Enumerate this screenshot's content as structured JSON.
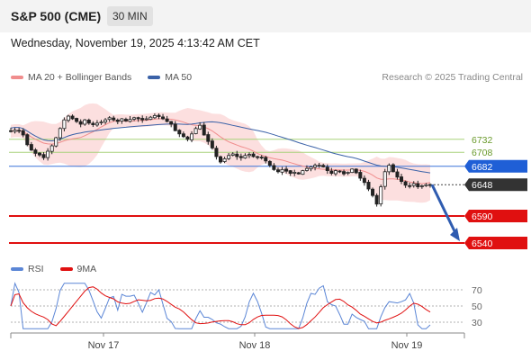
{
  "header": {
    "title": "S&P 500 (CME)",
    "timeframe": "30 MIN",
    "datetime": "Wednesday, November 19, 2025 4:13:42 AM CET",
    "copyright": "Research © 2025 Trading Central"
  },
  "legend_main": [
    {
      "label": "MA 20 + Bollinger Bands",
      "color": "#f08d8d"
    },
    {
      "label": "MA 50",
      "color": "#3b62a8"
    }
  ],
  "legend_rsi": [
    {
      "label": "RSI",
      "color": "#5b86d6"
    },
    {
      "label": "9MA",
      "color": "#e01010"
    }
  ],
  "chart_data": [
    {
      "type": "candlestick",
      "ylim": [
        6510,
        6810
      ],
      "x_tick_labels": [
        "Nov 17",
        "Nov 18",
        "Nov 19"
      ],
      "close": [
        6747,
        6749,
        6748,
        6740,
        6722,
        6712,
        6706,
        6703,
        6698,
        6710,
        6720,
        6735,
        6752,
        6768,
        6775,
        6770,
        6765,
        6760,
        6768,
        6762,
        6759,
        6762,
        6764,
        6768,
        6772,
        6768,
        6765,
        6770,
        6766,
        6769,
        6772,
        6770,
        6768,
        6770,
        6773,
        6776,
        6774,
        6770,
        6765,
        6760,
        6748,
        6742,
        6737,
        6732,
        6742,
        6752,
        6758,
        6740,
        6728,
        6716,
        6700,
        6690,
        6696,
        6702,
        6705,
        6700,
        6698,
        6702,
        6704,
        6700,
        6699,
        6698,
        6692,
        6684,
        6676,
        6672,
        6676,
        6673,
        6669,
        6671,
        6668,
        6674,
        6678,
        6681,
        6684,
        6684,
        6681,
        6674,
        6669,
        6674,
        6672,
        6668,
        6671,
        6677,
        6670,
        6660,
        6652,
        6640,
        6628,
        6612,
        6644,
        6672,
        6684,
        6672,
        6662,
        6654,
        6647,
        6646,
        6650,
        6644,
        6646,
        6648,
        6648
      ],
      "levels": [
        {
          "value": 6732,
          "label": "6732",
          "kind": "resistance"
        },
        {
          "value": 6708,
          "label": "6708",
          "kind": "resistance"
        },
        {
          "value": 6682,
          "label": "6682",
          "kind": "pivot"
        },
        {
          "value": 6648,
          "label": "6648",
          "kind": "last"
        },
        {
          "value": 6590,
          "label": "6590",
          "kind": "support"
        },
        {
          "value": 6540,
          "label": "6540",
          "kind": "support"
        }
      ],
      "projection": {
        "from": 6648,
        "to": 6540
      }
    },
    {
      "type": "line",
      "ylim": [
        20,
        80
      ],
      "y_tick_labels": [
        "70",
        "50",
        "30"
      ],
      "y_ticks": [
        70,
        50,
        30
      ],
      "series": [
        {
          "name": "RSI",
          "color": "#5b86d6"
        },
        {
          "name": "9MA",
          "color": "#e01010"
        }
      ]
    }
  ]
}
